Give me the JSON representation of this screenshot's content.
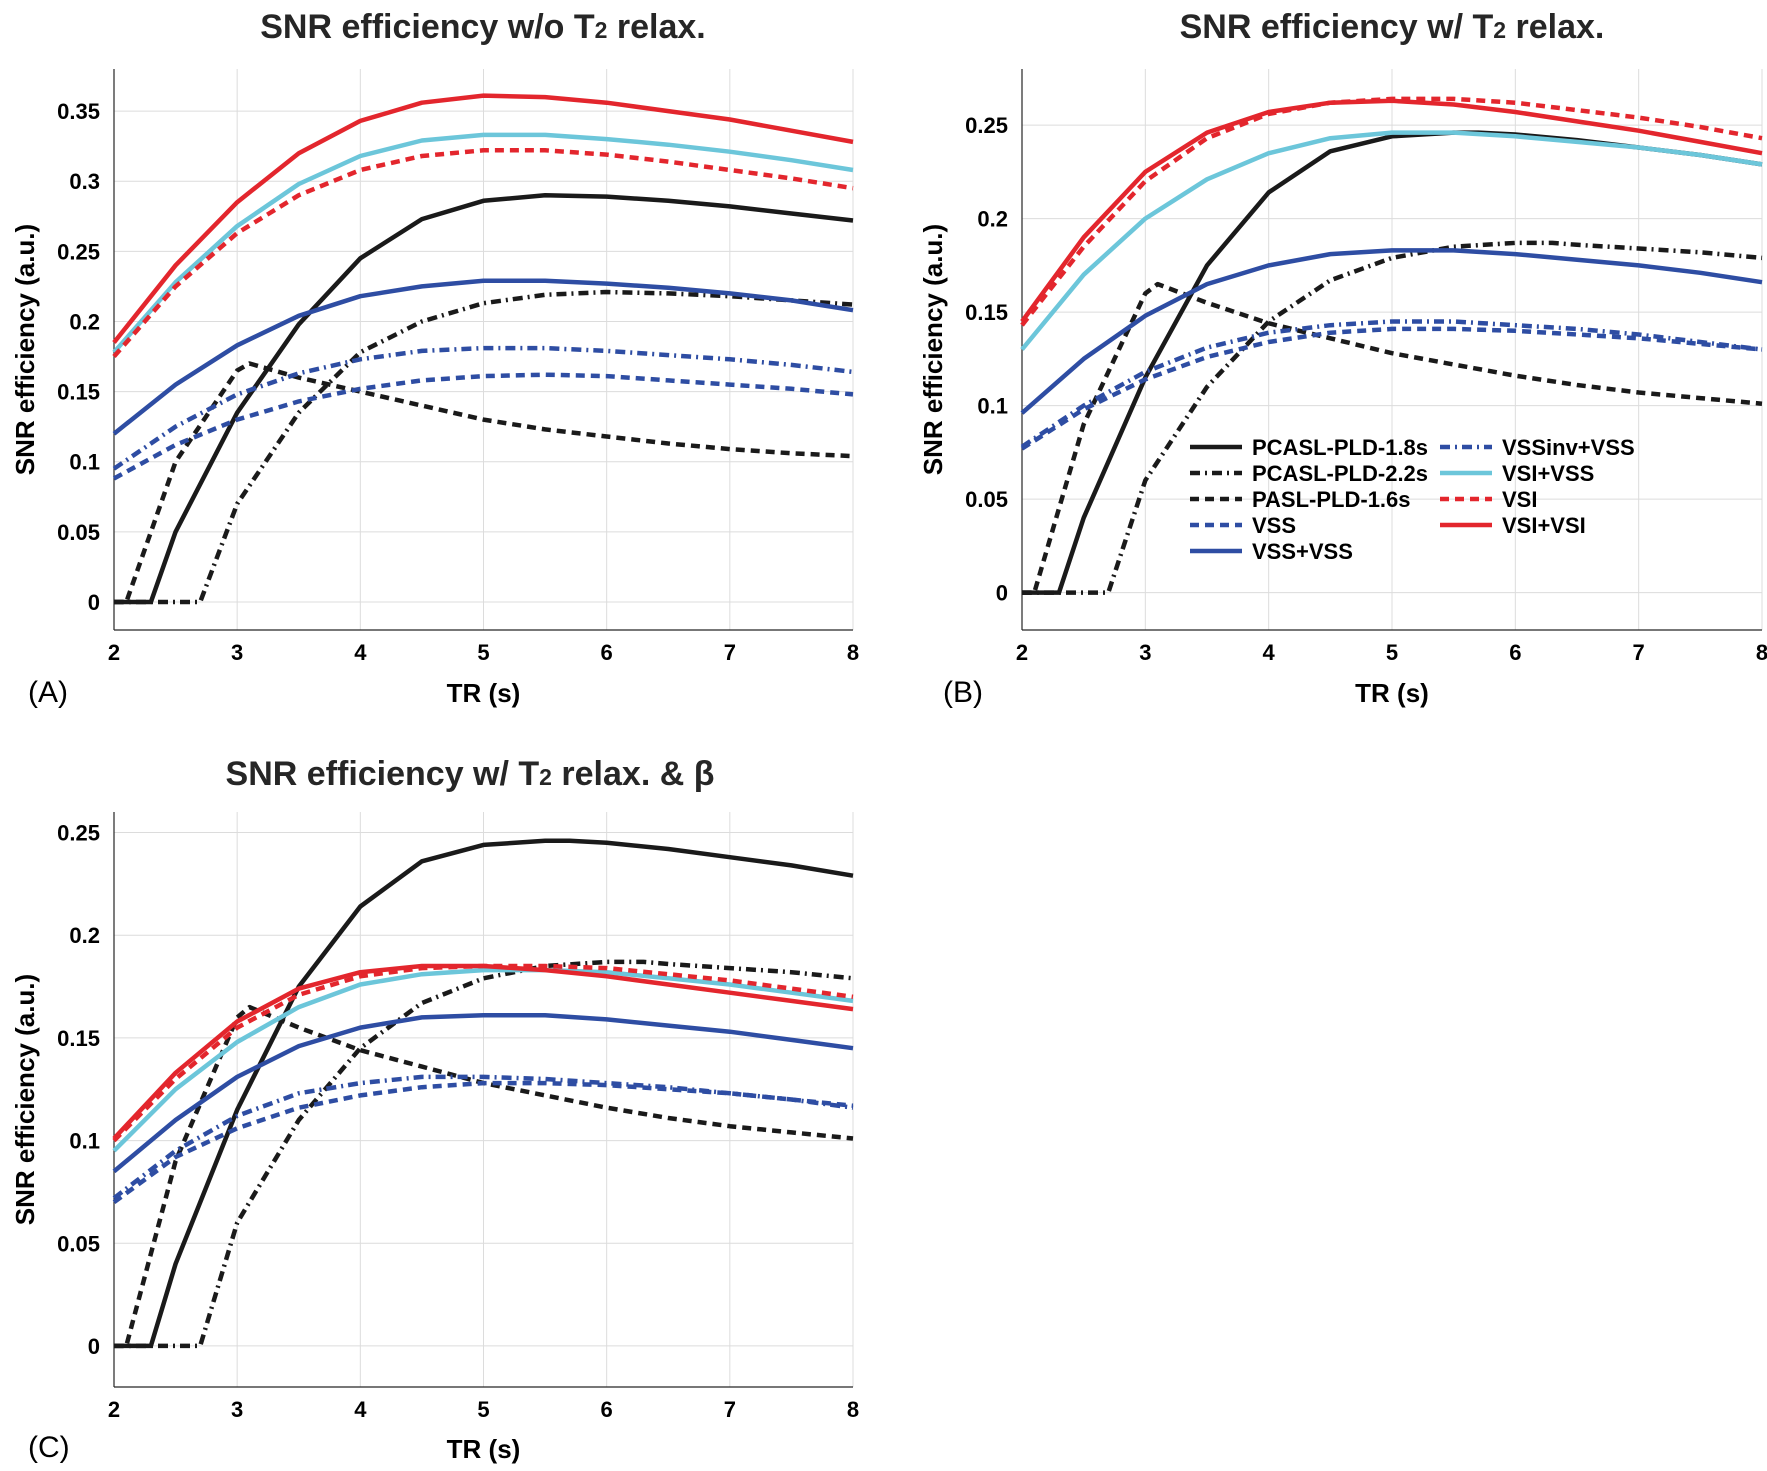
{
  "chart_data": [
    {
      "type": "line",
      "panel_label": "(A)",
      "title": "SNR efficiency w/o T",
      "title_sub": "2",
      "title_suffix": " relax.",
      "xlabel": "TR (s)",
      "ylabel": "SNR efficiency (a.u.)",
      "xlim": [
        2,
        8
      ],
      "ylim": [
        -0.02,
        0.38
      ],
      "xticks": [
        "2",
        "3",
        "4",
        "5",
        "6",
        "7",
        "8"
      ],
      "yticks": [
        "0",
        "0.05",
        "0.1",
        "0.15",
        "0.2",
        "0.25",
        "0.3",
        "0.35"
      ],
      "grid": true,
      "series": [
        {
          "name": "PCASL-PLD-1.8s",
          "color": "#1a1a1a",
          "dash": "solid",
          "x": [
            2,
            2.3,
            2.5,
            3,
            3.5,
            4,
            4.5,
            5,
            5.5,
            6,
            6.5,
            7,
            7.5,
            8
          ],
          "y": [
            0,
            0,
            0.05,
            0.135,
            0.198,
            0.245,
            0.273,
            0.286,
            0.29,
            0.289,
            0.286,
            0.282,
            0.277,
            0.272
          ]
        },
        {
          "name": "PCASL-PLD-2.2s",
          "color": "#1a1a1a",
          "dash": "dashdot",
          "x": [
            2,
            2.7,
            3,
            3.5,
            4,
            4.5,
            5,
            5.5,
            6,
            6.5,
            7,
            7.5,
            8
          ],
          "y": [
            0,
            0,
            0.07,
            0.135,
            0.178,
            0.2,
            0.213,
            0.219,
            0.221,
            0.22,
            0.218,
            0.215,
            0.212
          ]
        },
        {
          "name": "PASL-PLD-1.6s",
          "color": "#1a1a1a",
          "dash": "dash",
          "x": [
            2,
            2.1,
            2.5,
            3,
            3.1,
            3.5,
            4,
            4.5,
            5,
            5.5,
            6,
            6.5,
            7,
            7.5,
            8
          ],
          "y": [
            0,
            0,
            0.1,
            0.165,
            0.17,
            0.16,
            0.15,
            0.14,
            0.13,
            0.123,
            0.118,
            0.113,
            0.109,
            0.106,
            0.104
          ]
        },
        {
          "name": "VSS",
          "color": "#2e4da3",
          "dash": "dash",
          "x": [
            2,
            2.5,
            3,
            3.5,
            4,
            4.5,
            5,
            5.5,
            6,
            6.5,
            7,
            7.5,
            8
          ],
          "y": [
            0.088,
            0.112,
            0.13,
            0.143,
            0.152,
            0.158,
            0.161,
            0.162,
            0.161,
            0.158,
            0.155,
            0.152,
            0.148
          ]
        },
        {
          "name": "VSS+VSS",
          "color": "#2e4da3",
          "dash": "solid",
          "x": [
            2,
            2.5,
            3,
            3.5,
            4,
            4.5,
            5,
            5.5,
            6,
            6.5,
            7,
            7.5,
            8
          ],
          "y": [
            0.12,
            0.155,
            0.183,
            0.204,
            0.218,
            0.225,
            0.229,
            0.229,
            0.227,
            0.224,
            0.22,
            0.215,
            0.208
          ]
        },
        {
          "name": "VSSinv+VSS",
          "color": "#2e4da3",
          "dash": "dashdot",
          "x": [
            2,
            2.5,
            3,
            3.5,
            4,
            4.5,
            5,
            5.5,
            6,
            6.5,
            7,
            7.5,
            8
          ],
          "y": [
            0.095,
            0.125,
            0.148,
            0.163,
            0.173,
            0.179,
            0.181,
            0.181,
            0.179,
            0.176,
            0.173,
            0.169,
            0.164
          ]
        },
        {
          "name": "VSI+VSS",
          "color": "#6cc6da",
          "dash": "solid",
          "x": [
            2,
            2.5,
            3,
            3.5,
            4,
            4.5,
            5,
            5.5,
            6,
            6.5,
            7,
            7.5,
            8
          ],
          "y": [
            0.178,
            0.228,
            0.268,
            0.298,
            0.318,
            0.329,
            0.333,
            0.333,
            0.33,
            0.326,
            0.321,
            0.315,
            0.308
          ]
        },
        {
          "name": "VSI",
          "color": "#e3262d",
          "dash": "dash",
          "x": [
            2,
            2.5,
            3,
            3.5,
            4,
            4.5,
            5,
            5.5,
            6,
            6.5,
            7,
            7.5,
            8
          ],
          "y": [
            0.175,
            0.225,
            0.263,
            0.29,
            0.308,
            0.318,
            0.322,
            0.322,
            0.319,
            0.314,
            0.308,
            0.302,
            0.295
          ]
        },
        {
          "name": "VSI+VSI",
          "color": "#e3262d",
          "dash": "solid",
          "x": [
            2,
            2.5,
            3,
            3.5,
            4,
            4.5,
            5,
            5.5,
            6,
            6.5,
            7,
            7.5,
            8
          ],
          "y": [
            0.185,
            0.24,
            0.285,
            0.32,
            0.343,
            0.356,
            0.361,
            0.36,
            0.356,
            0.35,
            0.344,
            0.336,
            0.328
          ]
        }
      ]
    },
    {
      "type": "line",
      "panel_label": "(B)",
      "title": "SNR efficiency w/ T",
      "title_sub": "2",
      "title_suffix": " relax.",
      "xlabel": "TR (s)",
      "ylabel": "SNR efficiency (a.u.)",
      "xlim": [
        2,
        8
      ],
      "ylim": [
        -0.02,
        0.28
      ],
      "xticks": [
        "2",
        "3",
        "4",
        "5",
        "6",
        "7",
        "8"
      ],
      "yticks": [
        "0",
        "0.05",
        "0.1",
        "0.15",
        "0.2",
        "0.25"
      ],
      "grid": true,
      "legend_position": "center",
      "series": [
        {
          "name": "PCASL-PLD-1.8s",
          "color": "#1a1a1a",
          "dash": "solid",
          "x": [
            2,
            2.3,
            2.5,
            3,
            3.5,
            4,
            4.5,
            5,
            5.5,
            5.7,
            6,
            6.5,
            7,
            7.5,
            8
          ],
          "y": [
            0,
            0,
            0.04,
            0.115,
            0.175,
            0.214,
            0.236,
            0.244,
            0.246,
            0.246,
            0.245,
            0.242,
            0.238,
            0.234,
            0.229
          ]
        },
        {
          "name": "PCASL-PLD-2.2s",
          "color": "#1a1a1a",
          "dash": "dashdot",
          "x": [
            2,
            2.7,
            3,
            3.5,
            4,
            4.5,
            5,
            5.5,
            6,
            6.3,
            6.5,
            7,
            7.5,
            8
          ],
          "y": [
            0,
            0,
            0.06,
            0.11,
            0.145,
            0.167,
            0.179,
            0.185,
            0.187,
            0.187,
            0.186,
            0.184,
            0.182,
            0.179
          ]
        },
        {
          "name": "PASL-PLD-1.6s",
          "color": "#1a1a1a",
          "dash": "dash",
          "x": [
            2,
            2.1,
            2.5,
            3,
            3.1,
            3.5,
            4,
            4.5,
            5,
            5.5,
            6,
            6.5,
            7,
            7.5,
            8
          ],
          "y": [
            0,
            0,
            0.09,
            0.16,
            0.165,
            0.155,
            0.144,
            0.136,
            0.128,
            0.122,
            0.116,
            0.111,
            0.107,
            0.104,
            0.101
          ]
        },
        {
          "name": "VSS",
          "color": "#2e4da3",
          "dash": "dash",
          "x": [
            2,
            2.5,
            3,
            3.5,
            4,
            4.5,
            5,
            5.5,
            6,
            6.5,
            7,
            7.5,
            8
          ],
          "y": [
            0.077,
            0.098,
            0.114,
            0.126,
            0.134,
            0.139,
            0.141,
            0.141,
            0.14,
            0.138,
            0.136,
            0.133,
            0.13
          ]
        },
        {
          "name": "VSS+VSS",
          "color": "#2e4da3",
          "dash": "solid",
          "x": [
            2,
            2.5,
            3,
            3.5,
            4,
            4.5,
            5,
            5.5,
            6,
            6.5,
            7,
            7.5,
            8
          ],
          "y": [
            0.096,
            0.125,
            0.148,
            0.165,
            0.175,
            0.181,
            0.183,
            0.183,
            0.181,
            0.178,
            0.175,
            0.171,
            0.166
          ]
        },
        {
          "name": "VSSinv+VSS",
          "color": "#2e4da3",
          "dash": "dashdot",
          "x": [
            2,
            2.5,
            3,
            3.5,
            4,
            4.5,
            5,
            5.5,
            6,
            6.5,
            7,
            7.5,
            8
          ],
          "y": [
            0.078,
            0.1,
            0.118,
            0.131,
            0.139,
            0.143,
            0.145,
            0.145,
            0.143,
            0.141,
            0.138,
            0.134,
            0.13
          ]
        },
        {
          "name": "VSI+VSS",
          "color": "#6cc6da",
          "dash": "solid",
          "x": [
            2,
            2.5,
            3,
            3.5,
            4,
            4.5,
            5,
            5.5,
            6,
            6.5,
            7,
            7.5,
            8
          ],
          "y": [
            0.13,
            0.17,
            0.2,
            0.221,
            0.235,
            0.243,
            0.246,
            0.246,
            0.244,
            0.241,
            0.238,
            0.234,
            0.229
          ]
        },
        {
          "name": "VSI",
          "color": "#e3262d",
          "dash": "dash",
          "x": [
            2,
            2.5,
            3,
            3.5,
            4,
            4.5,
            5,
            5.5,
            6,
            6.5,
            7,
            7.5,
            8
          ],
          "y": [
            0.143,
            0.185,
            0.22,
            0.243,
            0.256,
            0.262,
            0.264,
            0.264,
            0.262,
            0.258,
            0.254,
            0.249,
            0.243
          ]
        },
        {
          "name": "VSI+VSI",
          "color": "#e3262d",
          "dash": "solid",
          "x": [
            2,
            2.5,
            3,
            3.5,
            4,
            4.5,
            5,
            5.5,
            6,
            6.5,
            7,
            7.5,
            8
          ],
          "y": [
            0.145,
            0.19,
            0.225,
            0.246,
            0.257,
            0.262,
            0.263,
            0.261,
            0.257,
            0.252,
            0.247,
            0.241,
            0.235
          ]
        }
      ]
    },
    {
      "type": "line",
      "panel_label": "(C)",
      "title": "SNR efficiency w/ T",
      "title_sub": "2",
      "title_suffix": " relax. & β",
      "xlabel": "TR (s)",
      "ylabel": "SNR efficiency (a.u.)",
      "xlim": [
        2,
        8
      ],
      "ylim": [
        -0.02,
        0.26
      ],
      "xticks": [
        "2",
        "3",
        "4",
        "5",
        "6",
        "7",
        "8"
      ],
      "yticks": [
        "0",
        "0.05",
        "0.1",
        "0.15",
        "0.2",
        "0.25"
      ],
      "grid": true,
      "series": [
        {
          "name": "PCASL-PLD-1.8s",
          "color": "#1a1a1a",
          "dash": "solid",
          "x": [
            2,
            2.3,
            2.5,
            3,
            3.5,
            4,
            4.5,
            5,
            5.5,
            5.7,
            6,
            6.5,
            7,
            7.5,
            8
          ],
          "y": [
            0,
            0,
            0.04,
            0.115,
            0.175,
            0.214,
            0.236,
            0.244,
            0.246,
            0.246,
            0.245,
            0.242,
            0.238,
            0.234,
            0.229
          ]
        },
        {
          "name": "PCASL-PLD-2.2s",
          "color": "#1a1a1a",
          "dash": "dashdot",
          "x": [
            2,
            2.7,
            3,
            3.5,
            4,
            4.5,
            5,
            5.5,
            6,
            6.3,
            6.5,
            7,
            7.5,
            8
          ],
          "y": [
            0,
            0,
            0.06,
            0.11,
            0.145,
            0.167,
            0.179,
            0.185,
            0.187,
            0.187,
            0.186,
            0.184,
            0.182,
            0.179
          ]
        },
        {
          "name": "PASL-PLD-1.6s",
          "color": "#1a1a1a",
          "dash": "dash",
          "x": [
            2,
            2.1,
            2.5,
            3,
            3.1,
            3.5,
            4,
            4.5,
            5,
            5.5,
            6,
            6.5,
            7,
            7.5,
            8
          ],
          "y": [
            0,
            0,
            0.09,
            0.16,
            0.165,
            0.155,
            0.144,
            0.136,
            0.128,
            0.122,
            0.116,
            0.111,
            0.107,
            0.104,
            0.101
          ]
        },
        {
          "name": "VSS",
          "color": "#2e4da3",
          "dash": "dash",
          "x": [
            2,
            2.5,
            3,
            3.5,
            4,
            4.5,
            5,
            5.5,
            6,
            6.5,
            7,
            7.5,
            8
          ],
          "y": [
            0.07,
            0.092,
            0.106,
            0.116,
            0.122,
            0.126,
            0.128,
            0.128,
            0.127,
            0.125,
            0.123,
            0.12,
            0.117
          ]
        },
        {
          "name": "VSS+VSS",
          "color": "#2e4da3",
          "dash": "solid",
          "x": [
            2,
            2.5,
            3,
            3.5,
            4,
            4.5,
            5,
            5.5,
            6,
            6.5,
            7,
            7.5,
            8
          ],
          "y": [
            0.085,
            0.11,
            0.131,
            0.146,
            0.155,
            0.16,
            0.161,
            0.161,
            0.159,
            0.156,
            0.153,
            0.149,
            0.145
          ]
        },
        {
          "name": "VSSinv+VSS",
          "color": "#2e4da3",
          "dash": "dashdot",
          "x": [
            2,
            2.5,
            3,
            3.5,
            4,
            4.5,
            5,
            5.5,
            6,
            6.5,
            7,
            7.5,
            8
          ],
          "y": [
            0.072,
            0.095,
            0.112,
            0.123,
            0.128,
            0.131,
            0.131,
            0.13,
            0.128,
            0.126,
            0.123,
            0.12,
            0.116
          ]
        },
        {
          "name": "VSI+VSS",
          "color": "#6cc6da",
          "dash": "solid",
          "x": [
            2,
            2.5,
            3,
            3.5,
            4,
            4.5,
            5,
            5.5,
            6,
            6.5,
            7,
            7.5,
            8
          ],
          "y": [
            0.095,
            0.125,
            0.148,
            0.165,
            0.176,
            0.181,
            0.183,
            0.183,
            0.182,
            0.179,
            0.176,
            0.172,
            0.168
          ]
        },
        {
          "name": "VSI",
          "color": "#e3262d",
          "dash": "dash",
          "x": [
            2,
            2.5,
            3,
            3.5,
            4,
            4.5,
            5,
            5.5,
            6,
            6.5,
            7,
            7.5,
            8
          ],
          "y": [
            0.1,
            0.13,
            0.155,
            0.171,
            0.18,
            0.184,
            0.185,
            0.185,
            0.184,
            0.181,
            0.178,
            0.174,
            0.17
          ]
        },
        {
          "name": "VSI+VSI",
          "color": "#e3262d",
          "dash": "solid",
          "x": [
            2,
            2.5,
            3,
            3.5,
            4,
            4.5,
            5,
            5.5,
            6,
            6.5,
            7,
            7.5,
            8
          ],
          "y": [
            0.101,
            0.133,
            0.158,
            0.174,
            0.182,
            0.185,
            0.185,
            0.183,
            0.18,
            0.176,
            0.172,
            0.168,
            0.164
          ]
        }
      ]
    }
  ]
}
